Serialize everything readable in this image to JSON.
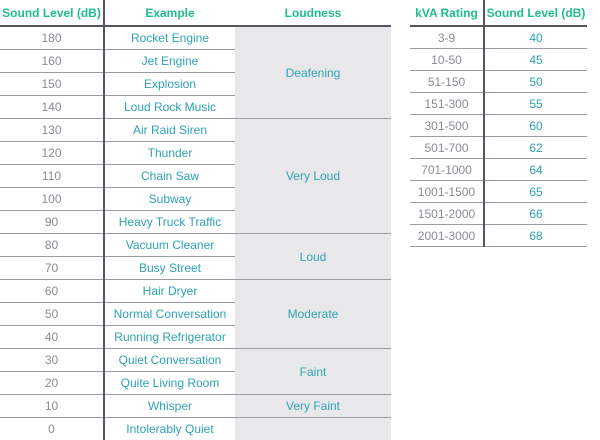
{
  "chart_data": [
    {
      "type": "table",
      "columns": [
        "Sound Level (dB)",
        "Example",
        "Loudness"
      ],
      "rows": [
        [
          "180",
          "Rocket Engine"
        ],
        [
          "160",
          "Jet Engine"
        ],
        [
          "150",
          "Explosion"
        ],
        [
          "140",
          "Loud Rock Music"
        ],
        [
          "130",
          "Air Raid Siren"
        ],
        [
          "120",
          "Thunder"
        ],
        [
          "110",
          "Chain Saw"
        ],
        [
          "100",
          "Subway"
        ],
        [
          "90",
          "Heavy Truck Traffic"
        ],
        [
          "80",
          "Vacuum Cleaner"
        ],
        [
          "70",
          "Busy Street"
        ],
        [
          "60",
          "Hair Dryer"
        ],
        [
          "50",
          "Normal Conversation"
        ],
        [
          "40",
          "Running Refrigerator"
        ],
        [
          "30",
          "Quiet Conversation"
        ],
        [
          "20",
          "Quite Living Room"
        ],
        [
          "10",
          "Whisper"
        ],
        [
          "0",
          "Intolerably Quiet"
        ]
      ],
      "loudness_groups": [
        {
          "label": "Deafening",
          "span": 4
        },
        {
          "label": "Very Loud",
          "span": 5
        },
        {
          "label": "Loud",
          "span": 2
        },
        {
          "label": "Moderate",
          "span": 3
        },
        {
          "label": "Faint",
          "span": 2
        },
        {
          "label": "Very Faint",
          "span": 1
        },
        {
          "label": "",
          "span": 1
        }
      ]
    },
    {
      "type": "table",
      "columns": [
        "kVA Rating",
        "Sound Level (dB)"
      ],
      "rows": [
        [
          "3-9",
          "40"
        ],
        [
          "10-50",
          "45"
        ],
        [
          "51-150",
          "50"
        ],
        [
          "151-300",
          "55"
        ],
        [
          "301-500",
          "60"
        ],
        [
          "501-700",
          "62"
        ],
        [
          "701-1000",
          "64"
        ],
        [
          "1001-1500",
          "65"
        ],
        [
          "1501-2000",
          "66"
        ],
        [
          "2001-3000",
          "68"
        ]
      ]
    }
  ],
  "colors": {
    "header_green": "#1fbe8e",
    "value_teal": "#2fa2b3",
    "muted_gray_text": "#8b8b94",
    "row_line": "#9b9ba4",
    "strong_line": "#55555f",
    "loudness_cell_bg": "#e8e8eb"
  }
}
